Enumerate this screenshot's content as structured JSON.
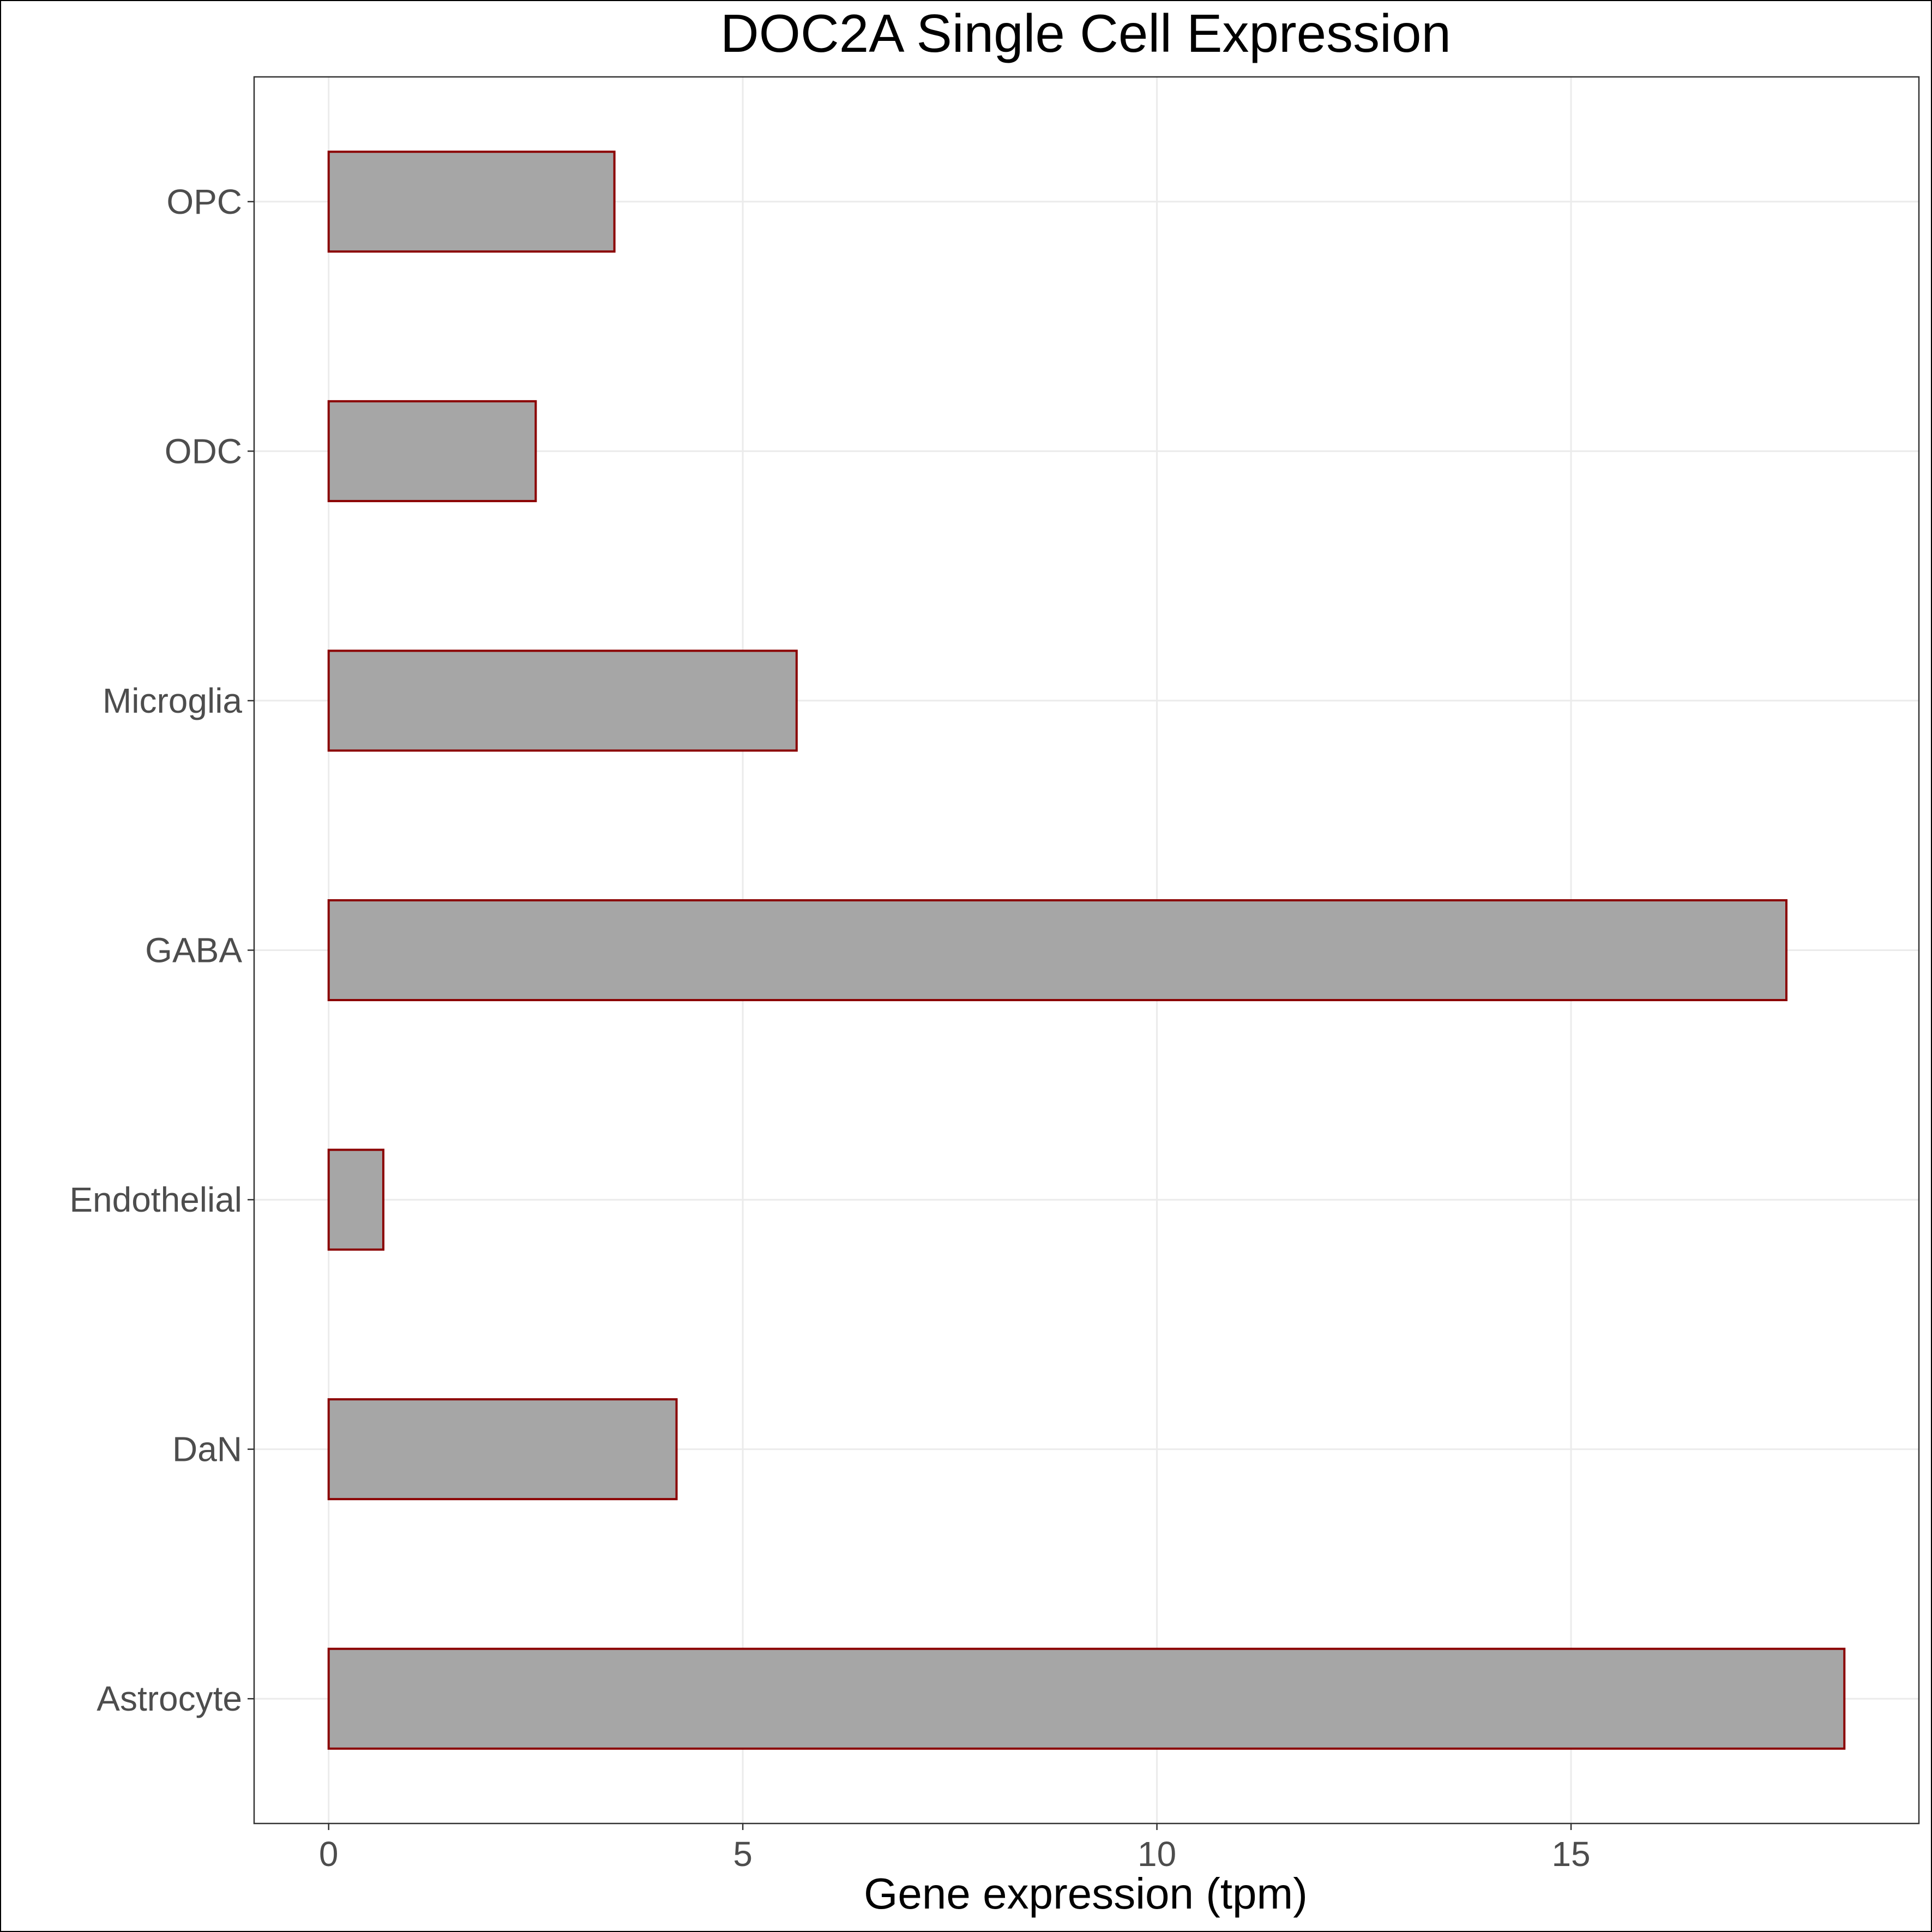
{
  "chart_data": {
    "type": "bar",
    "orientation": "horizontal",
    "title": "DOC2A Single Cell Expression",
    "xlabel": "Gene expression (tpm)",
    "ylabel": "",
    "categories": [
      "Astrocyte",
      "DaN",
      "Endothelial",
      "GABA",
      "Microglia",
      "ODC",
      "OPC"
    ],
    "values": [
      18.3,
      4.2,
      0.66,
      17.6,
      5.65,
      2.5,
      3.45
    ],
    "xlim": [
      -0.9,
      19.2
    ],
    "xticks": [
      0,
      5,
      10,
      15
    ],
    "grid": true,
    "legend": "none",
    "bar_fill": "#a6a6a6",
    "bar_edge": "#8b0000",
    "grid_color": "#ebebeb"
  }
}
